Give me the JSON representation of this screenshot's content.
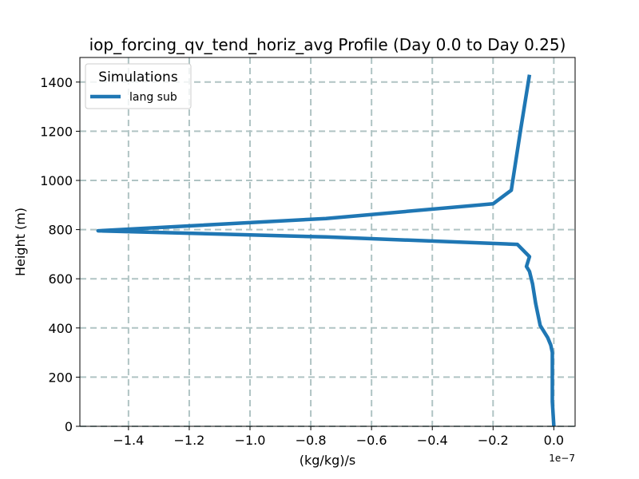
{
  "chart_data": {
    "type": "line",
    "title": "iop_forcing_qv_tend_horiz_avg Profile (Day 0.0 to Day 0.25)",
    "xlabel": "(kg/kg)/s",
    "ylabel": "Height (m)",
    "x_offset_label": "1e−7",
    "xlim": [
      -1.56,
      0.07
    ],
    "ylim": [
      0,
      1500
    ],
    "xticks": [
      -1.4,
      -1.2,
      -1.0,
      -0.8,
      -0.6,
      -0.4,
      -0.2,
      0.0
    ],
    "xtick_labels": [
      "−1.4",
      "−1.2",
      "−1.0",
      "−0.8",
      "−0.6",
      "−0.4",
      "−0.2",
      "0.0"
    ],
    "yticks": [
      0,
      200,
      400,
      600,
      800,
      1000,
      1200,
      1400
    ],
    "ytick_labels": [
      "0",
      "200",
      "400",
      "600",
      "800",
      "1000",
      "1200",
      "1400"
    ],
    "grid": true,
    "legend": {
      "title": "Simulations",
      "placement": "top-left"
    },
    "series": [
      {
        "name": "lang sub",
        "color": "#1f77b4",
        "x": [
          0.0,
          -0.005,
          -0.005,
          -0.005,
          -0.005,
          -0.01,
          -0.02,
          -0.045,
          -0.06,
          -0.07,
          -0.08,
          -0.09,
          -0.08,
          -0.12,
          -0.75,
          -1.5,
          -0.75,
          -0.2,
          -0.14,
          -0.11,
          -0.08
        ],
        "y": [
          0,
          100,
          200,
          270,
          300,
          330,
          360,
          410,
          500,
          580,
          630,
          650,
          690,
          740,
          770,
          795,
          845,
          905,
          960,
          1200,
          1430
        ]
      }
    ]
  }
}
